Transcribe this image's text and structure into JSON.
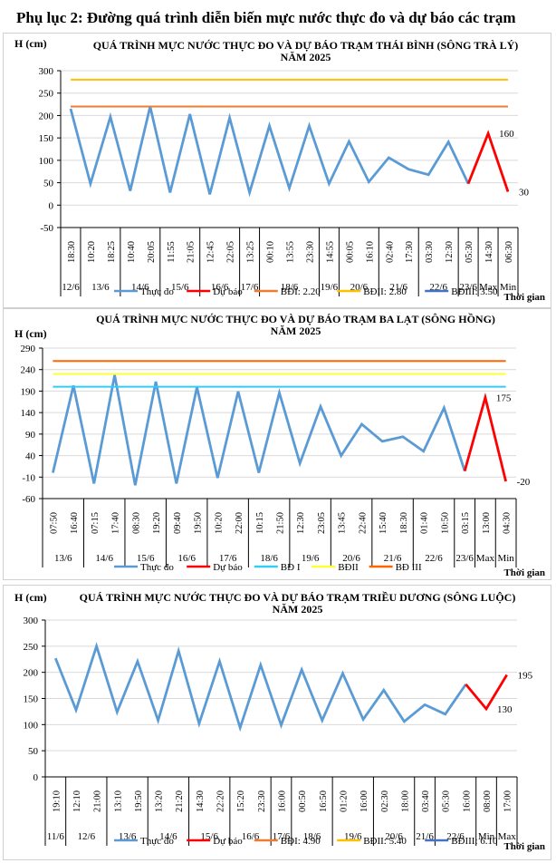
{
  "page": {
    "title": "Phụ lục 2: Đường quá trình diễn biến mực nước thực đo và dự báo các trạm"
  },
  "chart_data": [
    {
      "type": "line",
      "title": "QUÁ TRÌNH MỰC NƯỚC THỰC ĐO VÀ DỰ BÁO TRẠM THÁI BÌNH (SÔNG TRÀ LÝ)",
      "subtitle": "NĂM 2025",
      "ylabel": "H (cm)",
      "xlabel": "Thời gian",
      "ylim": [
        -50,
        300
      ],
      "yticks": [
        300,
        250,
        200,
        150,
        100,
        50,
        0,
        -50
      ],
      "grid": true,
      "legend_position": "bottom",
      "times": [
        "18:30",
        "10:20",
        "18:25",
        "10:40",
        "20:05",
        "11:55",
        "21:05",
        "12:45",
        "22:05",
        "13:25",
        "00:10",
        "13:55",
        "23:30",
        "14:55",
        "00:05",
        "16:10",
        "02:40",
        "17:30",
        "03:30",
        "12:30",
        "05:30",
        "14:30",
        "06:30"
      ],
      "date_groups": [
        {
          "label": "12/6",
          "span": 1
        },
        {
          "label": "13/6",
          "span": 2
        },
        {
          "label": "14/6",
          "span": 2
        },
        {
          "label": "15/6",
          "span": 2
        },
        {
          "label": "16/6",
          "span": 2
        },
        {
          "label": "17/6",
          "span": 1
        },
        {
          "label": "18/6",
          "span": 3
        },
        {
          "label": "19/6",
          "span": 1
        },
        {
          "label": "20/6",
          "span": 2
        },
        {
          "label": "21/6",
          "span": 2
        },
        {
          "label": "22/6",
          "span": 2
        },
        {
          "label": "23/6",
          "span": 1
        },
        {
          "label": "Max",
          "span": 1
        },
        {
          "label": "Min",
          "span": 1
        }
      ],
      "series": [
        {
          "name": "Thực đo",
          "color": "#5b9bd5",
          "start_index": 0,
          "values": [
            215,
            48,
            197,
            32,
            220,
            28,
            203,
            24,
            195,
            28,
            177,
            38,
            177,
            48,
            142,
            52,
            106,
            80,
            68,
            141,
            48
          ]
        },
        {
          "name": "Dự báo",
          "color": "#ff0000",
          "start_index": 20,
          "values": [
            48,
            160,
            30
          ]
        },
        {
          "name": "BĐI: 2.20",
          "color": "#ed7d31",
          "constant": 220
        },
        {
          "name": "BĐII: 2.80",
          "color": "#ffc000",
          "constant": 280
        },
        {
          "name": "BĐIII: 3.50",
          "color": "#4472c4",
          "constant": 350
        }
      ],
      "annotations": [
        {
          "text": "160",
          "index": 21,
          "value": 160
        },
        {
          "text": "30",
          "index": 22,
          "value": 30
        }
      ]
    },
    {
      "type": "line",
      "title": "QUÁ TRÌNH MỰC NƯỚC THỰC ĐO VÀ DỰ BÁO TRẠM BA LẠT (SÔNG HỒNG)",
      "subtitle": "NĂM 2025",
      "ylabel": "H (cm)",
      "xlabel": "Thời gian",
      "ylim": [
        -60,
        290
      ],
      "yticks": [
        290,
        240,
        190,
        140,
        90,
        40,
        -10,
        -60
      ],
      "grid": true,
      "legend_position": "bottom",
      "times": [
        "07:50",
        "16:40",
        "07:15",
        "17:40",
        "08:30",
        "19:20",
        "09:40",
        "19:50",
        "10:20",
        "22:00",
        "10:15",
        "21:50",
        "12:30",
        "23:05",
        "13:45",
        "22:40",
        "15:40",
        "18:30",
        "01:40",
        "10:50",
        "03:15",
        "13:00",
        "04:30"
      ],
      "date_groups": [
        {
          "label": "13/6",
          "span": 2
        },
        {
          "label": "14/6",
          "span": 2
        },
        {
          "label": "15/6",
          "span": 2
        },
        {
          "label": "16/6",
          "span": 2
        },
        {
          "label": "17/6",
          "span": 2
        },
        {
          "label": "18/6",
          "span": 2
        },
        {
          "label": "19/6",
          "span": 2
        },
        {
          "label": "20/6",
          "span": 2
        },
        {
          "label": "21/6",
          "span": 2
        },
        {
          "label": "22/6",
          "span": 2
        },
        {
          "label": "23/6",
          "span": 1
        },
        {
          "label": "Max",
          "span": 1
        },
        {
          "label": "Min",
          "span": 1
        }
      ],
      "series": [
        {
          "name": "Thực đo",
          "color": "#5b9bd5",
          "start_index": 0,
          "values": [
            0,
            203,
            -25,
            227,
            -29,
            212,
            -25,
            199,
            -12,
            189,
            0,
            186,
            22,
            154,
            40,
            113,
            73,
            84,
            50,
            151,
            4
          ]
        },
        {
          "name": "Dự báo",
          "color": "#ff0000",
          "start_index": 20,
          "values": [
            4,
            175,
            -20
          ]
        },
        {
          "name": "BĐ I",
          "color": "#33ccf5",
          "constant": 200
        },
        {
          "name": "BĐII",
          "color": "#ffff33",
          "constant": 230
        },
        {
          "name": "BĐ III",
          "color": "#ff6600",
          "constant": 260
        }
      ],
      "annotations": [
        {
          "text": "175",
          "index": 21,
          "value": 175
        },
        {
          "text": "-20",
          "index": 22,
          "value": -20
        }
      ]
    },
    {
      "type": "line",
      "title": "QUÁ TRÌNH MỰC NƯỚC THỰC ĐO VÀ DỰ BÁO TRẠM TRIỀU DƯƠNG  (SÔNG LUỘC)",
      "subtitle": "NĂM 2025",
      "ylabel": "H (cm)",
      "xlabel": "Thời gian",
      "ylim": [
        0,
        300
      ],
      "yticks": [
        300,
        250,
        200,
        150,
        100,
        50,
        0
      ],
      "grid": true,
      "legend_position": "bottom",
      "times": [
        "19:10",
        "12:10",
        "21:00",
        "13:10",
        "19:50",
        "13:20",
        "21:20",
        "14:30",
        "22:20",
        "15:20",
        "23:30",
        "16:00",
        "00:50",
        "16:50",
        "01:20",
        "16:00",
        "02:30",
        "18:00",
        "03:40",
        "05:30",
        "16:00",
        "08:00",
        "17:00"
      ],
      "date_groups": [
        {
          "label": "11/6",
          "span": 1
        },
        {
          "label": "12/6",
          "span": 2
        },
        {
          "label": "13/6",
          "span": 2
        },
        {
          "label": "14/6",
          "span": 2
        },
        {
          "label": "15/6",
          "span": 2
        },
        {
          "label": "16/6",
          "span": 2
        },
        {
          "label": "17/6",
          "span": 1
        },
        {
          "label": "18/6",
          "span": 2
        },
        {
          "label": "19/6",
          "span": 2
        },
        {
          "label": "20/6",
          "span": 2
        },
        {
          "label": "21/6",
          "span": 1
        },
        {
          "label": "22/6",
          "span": 2
        },
        {
          "label": "Min",
          "span": 1
        },
        {
          "label": "Max",
          "span": 1
        }
      ],
      "series": [
        {
          "name": "Thực đo",
          "color": "#5b9bd5",
          "start_index": 0,
          "values": [
            227,
            128,
            250,
            124,
            221,
            108,
            241,
            102,
            221,
            94,
            214,
            99,
            205,
            108,
            198,
            110,
            166,
            106,
            138,
            120,
            177
          ]
        },
        {
          "name": "Dự báo",
          "color": "#ff0000",
          "start_index": 20,
          "values": [
            177,
            130,
            195
          ]
        },
        {
          "name": "BĐI: 4.90",
          "color": "#ed7d31",
          "constant": 490
        },
        {
          "name": "BĐII: 5.40",
          "color": "#ffc000",
          "constant": 540
        },
        {
          "name": "BĐIII: 6.10",
          "color": "#4472c4",
          "constant": 610
        }
      ],
      "annotations": [
        {
          "text": "130",
          "index": 21,
          "value": 130
        },
        {
          "text": "195",
          "index": 22,
          "value": 195
        }
      ]
    }
  ]
}
